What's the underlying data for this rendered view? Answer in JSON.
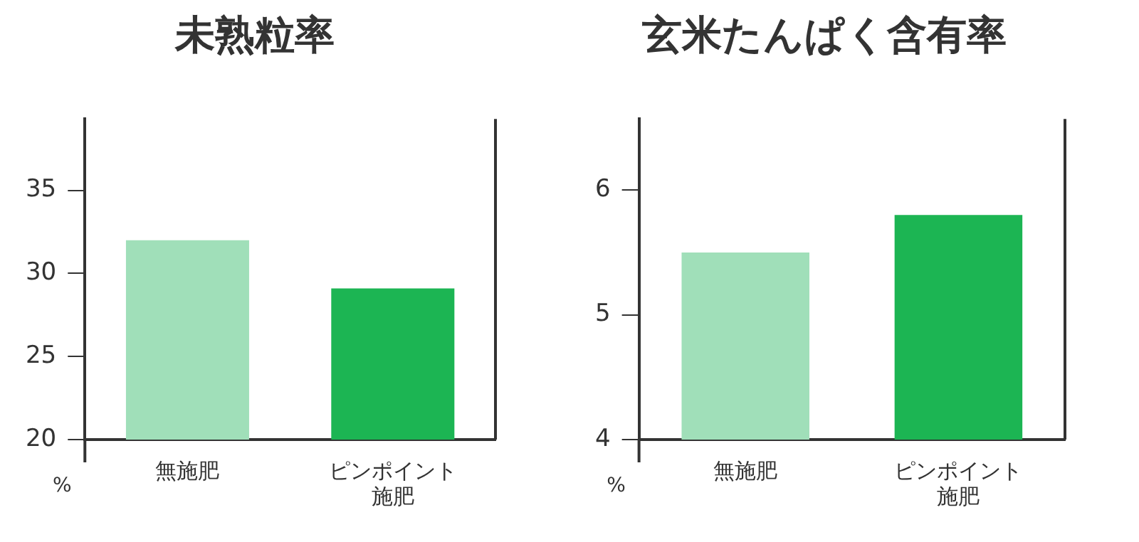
{
  "chart_data": [
    {
      "type": "bar",
      "title": "未熟粒率",
      "ylabel": "%",
      "categories": [
        "無施肥",
        "ピンポイント施肥"
      ],
      "values": [
        32,
        29.1
      ],
      "colors": [
        "#a0dfb9",
        "#1cb553"
      ],
      "ylim": [
        20,
        39.3
      ],
      "yticks": [
        20,
        25,
        30,
        35
      ],
      "grid": false,
      "legend": false
    },
    {
      "type": "bar",
      "title": "玄米たんぱく含有率",
      "ylabel": "%",
      "categories": [
        "無施肥",
        "ピンポイント施肥"
      ],
      "values": [
        5.5,
        5.8
      ],
      "colors": [
        "#a0dfb9",
        "#1cb553"
      ],
      "ylim": [
        4,
        6.57
      ],
      "yticks": [
        4,
        5,
        6
      ],
      "grid": false,
      "legend": false
    }
  ]
}
